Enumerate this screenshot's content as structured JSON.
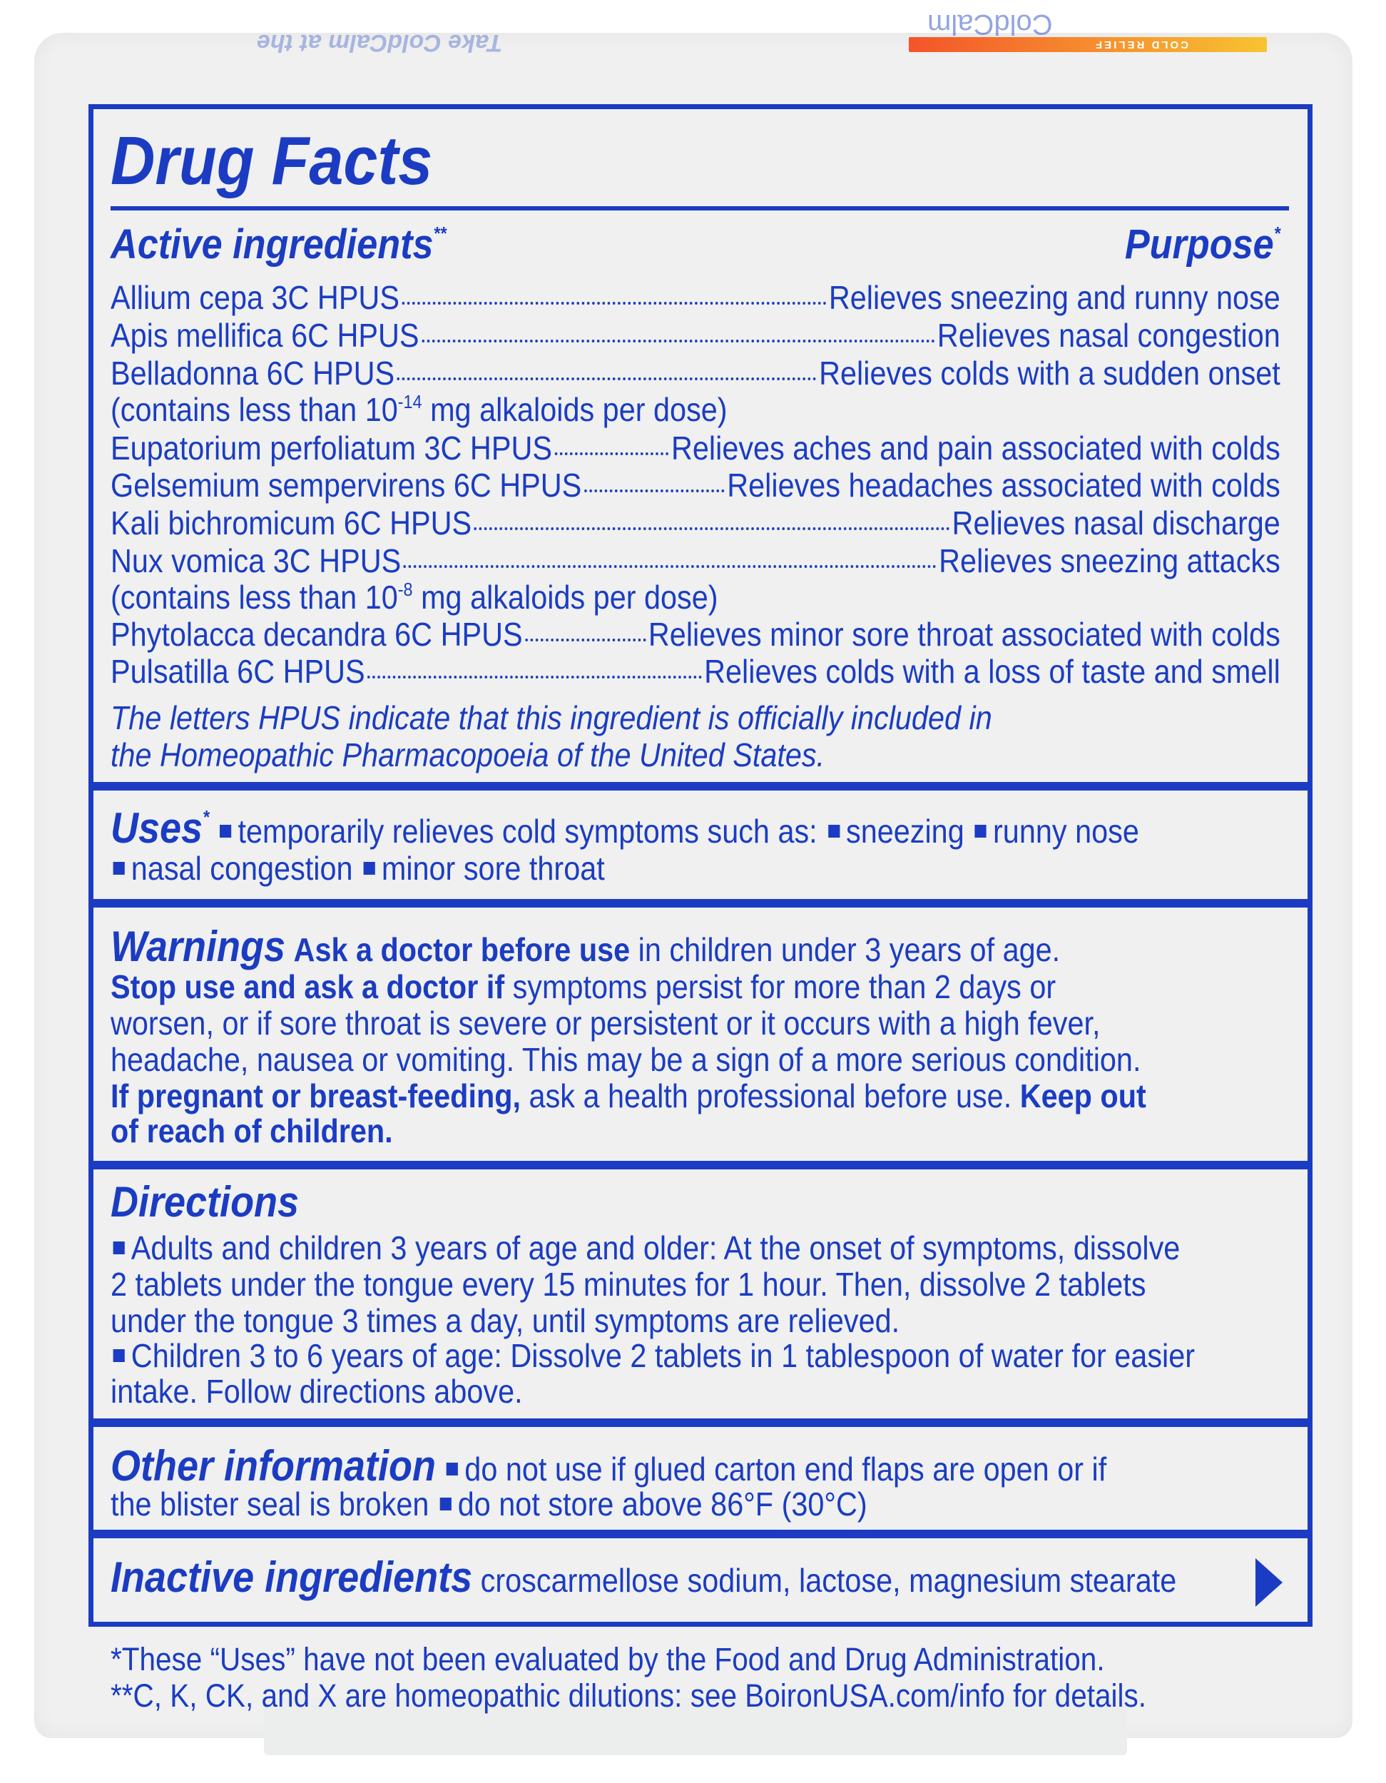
{
  "colors": {
    "text": "#1b3cc2",
    "background": "#eff0ef",
    "badge_start": "#f4542a",
    "badge_end": "#f7c331"
  },
  "title": "Drug Facts",
  "active": {
    "header": "Active ingredients",
    "header_mark": "**",
    "purpose_header": "Purpose",
    "purpose_mark": "*",
    "rows": [
      {
        "name": "Allium cepa 3C HPUS",
        "purpose": "Relieves sneezing and runny nose"
      },
      {
        "name": "Apis mellifica 6C HPUS",
        "purpose": "Relieves nasal congestion"
      },
      {
        "name": "Belladonna 6C HPUS",
        "purpose": "Relieves colds with a sudden onset"
      },
      {
        "name": "Eupatorium perfoliatum 3C HPUS",
        "purpose": "Relieves aches and pain associated with colds"
      },
      {
        "name": "Gelsemium sempervirens 6C HPUS",
        "purpose": "Relieves headaches associated with colds"
      },
      {
        "name": "Kali bichromicum 6C HPUS",
        "purpose": "Relieves nasal discharge"
      },
      {
        "name": "Nux vomica 3C HPUS",
        "purpose": "Relieves sneezing attacks"
      },
      {
        "name": "Phytolacca decandra 6C HPUS",
        "purpose": "Relieves minor sore throat associated with colds"
      },
      {
        "name": "Pulsatilla 6C HPUS",
        "purpose": "Relieves colds with a loss of taste and smell"
      }
    ],
    "note_belladonna": {
      "pre": "(contains less than 10",
      "exp": "-14",
      "post": " mg alkaloids per dose)"
    },
    "note_nux": {
      "pre": "(contains less than 10",
      "exp": "-8",
      "post": " mg alkaloids per dose)"
    },
    "hpus_note": [
      "The letters HPUS indicate that this ingredient is officially included in",
      "the Homeopathic Pharmacopoeia of the United States."
    ]
  },
  "uses": {
    "header": "Uses",
    "mark": "*",
    "intro": "temporarily relieves cold symptoms such as:",
    "items": [
      "sneezing",
      "runny nose",
      "nasal congestion",
      "minor sore throat"
    ]
  },
  "warnings": {
    "header": "Warnings",
    "l1b": "Ask a doctor before use",
    "l1": " in children under 3 years of age.",
    "l2b": "Stop use and ask a doctor if",
    "l2": " symptoms persist for more than 2 days or",
    "l3": "worsen, or if sore throat is severe or persistent or it occurs with a high fever,",
    "l4": "headache, nausea or vomiting. This may be a sign of a more serious condition.",
    "l5b": "If pregnant or breast-feeding,",
    "l5": " ask a health professional before use. ",
    "l5b2": "Keep out",
    "l6b": "of reach of children."
  },
  "directions": {
    "header": "Directions",
    "lines": [
      "Adults and children 3 years of age and older: At the onset of symptoms, dissolve",
      "2 tablets under the tongue every 15 minutes for 1 hour. Then, dissolve 2 tablets",
      "under the tongue 3 times a day, until symptoms are relieved.",
      "Children 3 to 6 years of age: Dissolve 2 tablets in 1 tablespoon of water for easier",
      "intake. Follow directions above."
    ]
  },
  "other": {
    "header": "Other information",
    "l1": "do not use if glued carton end flaps are open or if",
    "l2": "the blister seal is broken",
    "l2b": "do not store above 86°F (30°C)"
  },
  "inactive": {
    "header": "Inactive ingredients",
    "text": "croscarmellose sodium, lactose, magnesium stearate",
    "continue_icon": "triangle-right"
  },
  "footer": {
    "l1": "*These “Uses” have not been evaluated by the Food and Drug Administration.",
    "l2": "**C, K, CK, and X are homeopathic dilutions: see BoironUSA.com/info for details."
  },
  "package_top": {
    "flipped_text": "Take ColdCalm at the",
    "brand": "ColdCalm",
    "badge": "COLD RELIEF"
  }
}
